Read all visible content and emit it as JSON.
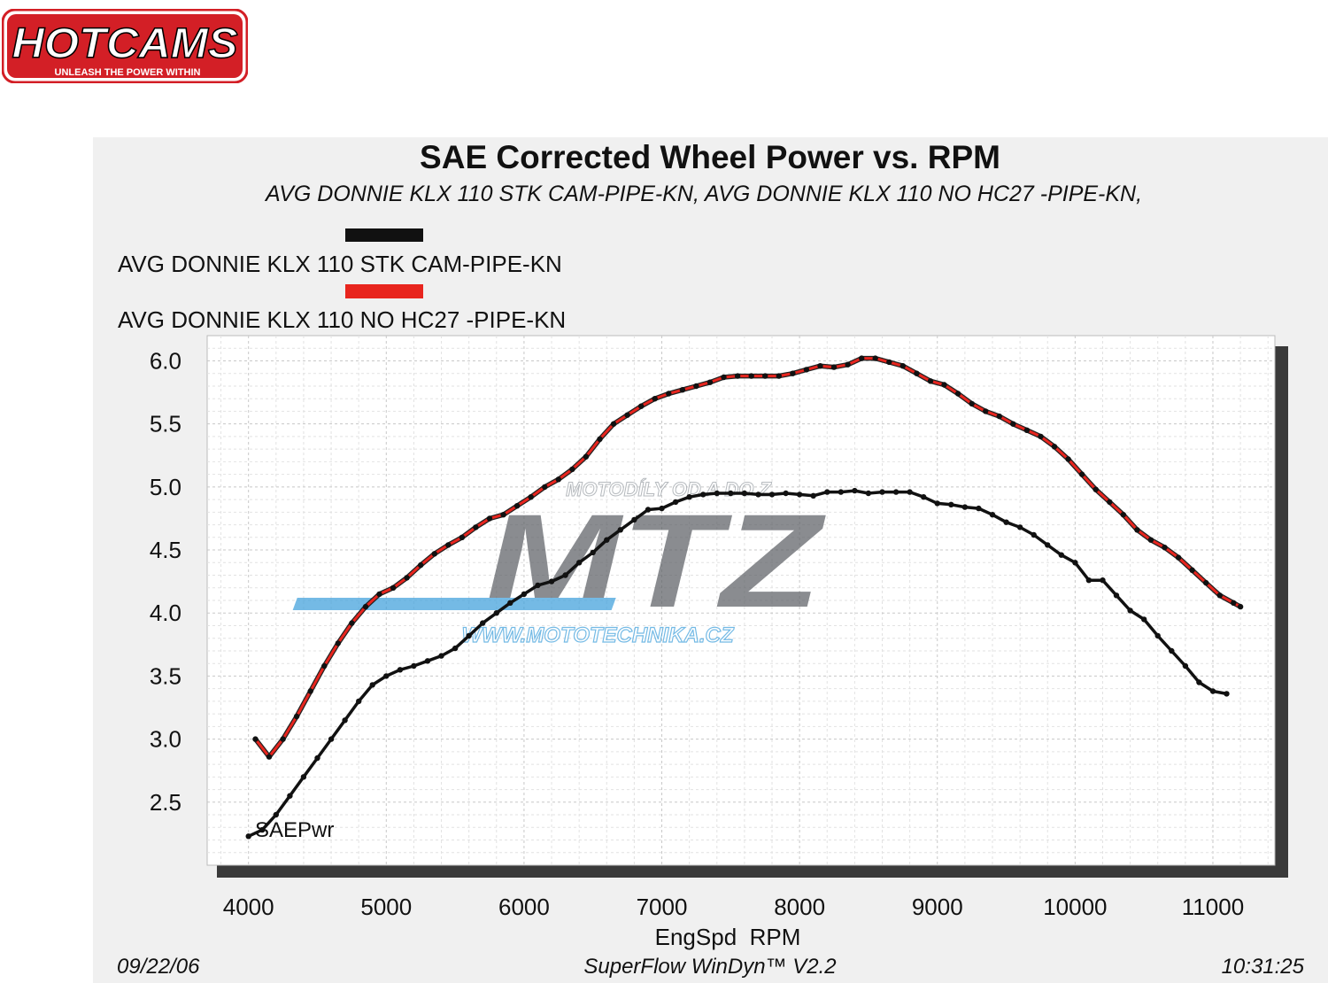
{
  "logo": {
    "brand": "HOTCAMS",
    "tagline": "UNLEASH THE POWER WITHIN"
  },
  "watermark": {
    "top_text": "MOTODÍLY OD A DO Z",
    "brand": "MTZ",
    "url": "WWW.MOTOTECHNIKA.CZ"
  },
  "footer": {
    "date": "09/22/06",
    "software": "SuperFlow WinDyn™ V2.2",
    "time": "10:31:25"
  },
  "colors": {
    "series_black": "#111111",
    "series_red": "#e8251e",
    "watermark": "#5e6166",
    "watermark_accent": "#3fa0dc",
    "panel": "#f0f0f0"
  },
  "chart_data": {
    "type": "line",
    "title": "SAE Corrected Wheel Power vs. RPM",
    "subtitle": "AVG DONNIE KLX 110 STK CAM-PIPE-KN, AVG DONNIE KLX 110 NO HC27 -PIPE-KN,",
    "xlabel": "EngSpd  RPM",
    "ylabel": "SAEPwr",
    "xlim": [
      3700,
      11450
    ],
    "ylim": [
      2.0,
      6.2
    ],
    "xticks": [
      "4000",
      "5000",
      "6000",
      "7000",
      "8000",
      "9000",
      "10000",
      "11000"
    ],
    "yticks": [
      "6.0",
      "5.5",
      "5.0",
      "4.5",
      "4.0",
      "3.5",
      "3.0",
      "2.5"
    ],
    "grid": true,
    "legend_position": "top-left",
    "series": [
      {
        "name": "AVG DONNIE KLX 110 STK CAM-PIPE-KN",
        "color": "#111111",
        "points": [
          [
            4000,
            2.23
          ],
          [
            4100,
            2.28
          ],
          [
            4200,
            2.4
          ],
          [
            4300,
            2.55
          ],
          [
            4400,
            2.7
          ],
          [
            4500,
            2.85
          ],
          [
            4600,
            3.0
          ],
          [
            4700,
            3.15
          ],
          [
            4800,
            3.3
          ],
          [
            4900,
            3.43
          ],
          [
            5000,
            3.5
          ],
          [
            5100,
            3.55
          ],
          [
            5200,
            3.58
          ],
          [
            5300,
            3.62
          ],
          [
            5400,
            3.66
          ],
          [
            5500,
            3.72
          ],
          [
            5600,
            3.82
          ],
          [
            5700,
            3.92
          ],
          [
            5800,
            4.0
          ],
          [
            5900,
            4.08
          ],
          [
            6000,
            4.15
          ],
          [
            6100,
            4.22
          ],
          [
            6200,
            4.25
          ],
          [
            6300,
            4.3
          ],
          [
            6400,
            4.4
          ],
          [
            6500,
            4.48
          ],
          [
            6600,
            4.58
          ],
          [
            6700,
            4.66
          ],
          [
            6800,
            4.74
          ],
          [
            6900,
            4.82
          ],
          [
            7000,
            4.83
          ],
          [
            7100,
            4.88
          ],
          [
            7200,
            4.92
          ],
          [
            7300,
            4.94
          ],
          [
            7400,
            4.95
          ],
          [
            7500,
            4.95
          ],
          [
            7600,
            4.95
          ],
          [
            7700,
            4.94
          ],
          [
            7800,
            4.94
          ],
          [
            7900,
            4.95
          ],
          [
            8000,
            4.94
          ],
          [
            8100,
            4.93
          ],
          [
            8200,
            4.96
          ],
          [
            8300,
            4.96
          ],
          [
            8400,
            4.97
          ],
          [
            8500,
            4.95
          ],
          [
            8600,
            4.96
          ],
          [
            8700,
            4.96
          ],
          [
            8800,
            4.96
          ],
          [
            8900,
            4.92
          ],
          [
            9000,
            4.87
          ],
          [
            9100,
            4.86
          ],
          [
            9200,
            4.84
          ],
          [
            9300,
            4.83
          ],
          [
            9400,
            4.78
          ],
          [
            9500,
            4.72
          ],
          [
            9600,
            4.68
          ],
          [
            9700,
            4.62
          ],
          [
            9800,
            4.54
          ],
          [
            9900,
            4.46
          ],
          [
            10000,
            4.4
          ],
          [
            10100,
            4.26
          ],
          [
            10200,
            4.26
          ],
          [
            10300,
            4.14
          ],
          [
            10400,
            4.02
          ],
          [
            10500,
            3.95
          ],
          [
            10600,
            3.82
          ],
          [
            10700,
            3.7
          ],
          [
            10800,
            3.58
          ],
          [
            10900,
            3.45
          ],
          [
            11000,
            3.38
          ],
          [
            11100,
            3.36
          ]
        ]
      },
      {
        "name": "AVG DONNIE KLX 110 NO HC27 -PIPE-KN",
        "color": "#e8251e",
        "points": [
          [
            4050,
            3.0
          ],
          [
            4150,
            2.86
          ],
          [
            4250,
            3.0
          ],
          [
            4350,
            3.18
          ],
          [
            4450,
            3.38
          ],
          [
            4550,
            3.58
          ],
          [
            4650,
            3.76
          ],
          [
            4750,
            3.92
          ],
          [
            4850,
            4.05
          ],
          [
            4950,
            4.15
          ],
          [
            5050,
            4.2
          ],
          [
            5150,
            4.28
          ],
          [
            5250,
            4.38
          ],
          [
            5350,
            4.47
          ],
          [
            5450,
            4.54
          ],
          [
            5550,
            4.6
          ],
          [
            5650,
            4.68
          ],
          [
            5750,
            4.75
          ],
          [
            5850,
            4.78
          ],
          [
            5950,
            4.85
          ],
          [
            6050,
            4.92
          ],
          [
            6150,
            5.0
          ],
          [
            6250,
            5.06
          ],
          [
            6350,
            5.14
          ],
          [
            6450,
            5.24
          ],
          [
            6550,
            5.38
          ],
          [
            6650,
            5.5
          ],
          [
            6750,
            5.57
          ],
          [
            6850,
            5.64
          ],
          [
            6950,
            5.7
          ],
          [
            7050,
            5.74
          ],
          [
            7150,
            5.77
          ],
          [
            7250,
            5.8
          ],
          [
            7350,
            5.83
          ],
          [
            7450,
            5.87
          ],
          [
            7550,
            5.88
          ],
          [
            7650,
            5.88
          ],
          [
            7750,
            5.88
          ],
          [
            7850,
            5.88
          ],
          [
            7950,
            5.9
          ],
          [
            8050,
            5.93
          ],
          [
            8150,
            5.96
          ],
          [
            8250,
            5.95
          ],
          [
            8350,
            5.97
          ],
          [
            8450,
            6.02
          ],
          [
            8550,
            6.02
          ],
          [
            8650,
            5.99
          ],
          [
            8750,
            5.96
          ],
          [
            8850,
            5.9
          ],
          [
            8950,
            5.84
          ],
          [
            9050,
            5.81
          ],
          [
            9150,
            5.74
          ],
          [
            9250,
            5.66
          ],
          [
            9350,
            5.6
          ],
          [
            9450,
            5.56
          ],
          [
            9550,
            5.5
          ],
          [
            9650,
            5.45
          ],
          [
            9750,
            5.4
          ],
          [
            9850,
            5.32
          ],
          [
            9950,
            5.22
          ],
          [
            10050,
            5.1
          ],
          [
            10150,
            4.98
          ],
          [
            10250,
            4.88
          ],
          [
            10350,
            4.78
          ],
          [
            10450,
            4.66
          ],
          [
            10550,
            4.58
          ],
          [
            10650,
            4.52
          ],
          [
            10750,
            4.44
          ],
          [
            10850,
            4.34
          ],
          [
            10950,
            4.24
          ],
          [
            11050,
            4.14
          ],
          [
            11150,
            4.08
          ],
          [
            11200,
            4.05
          ]
        ]
      }
    ]
  }
}
